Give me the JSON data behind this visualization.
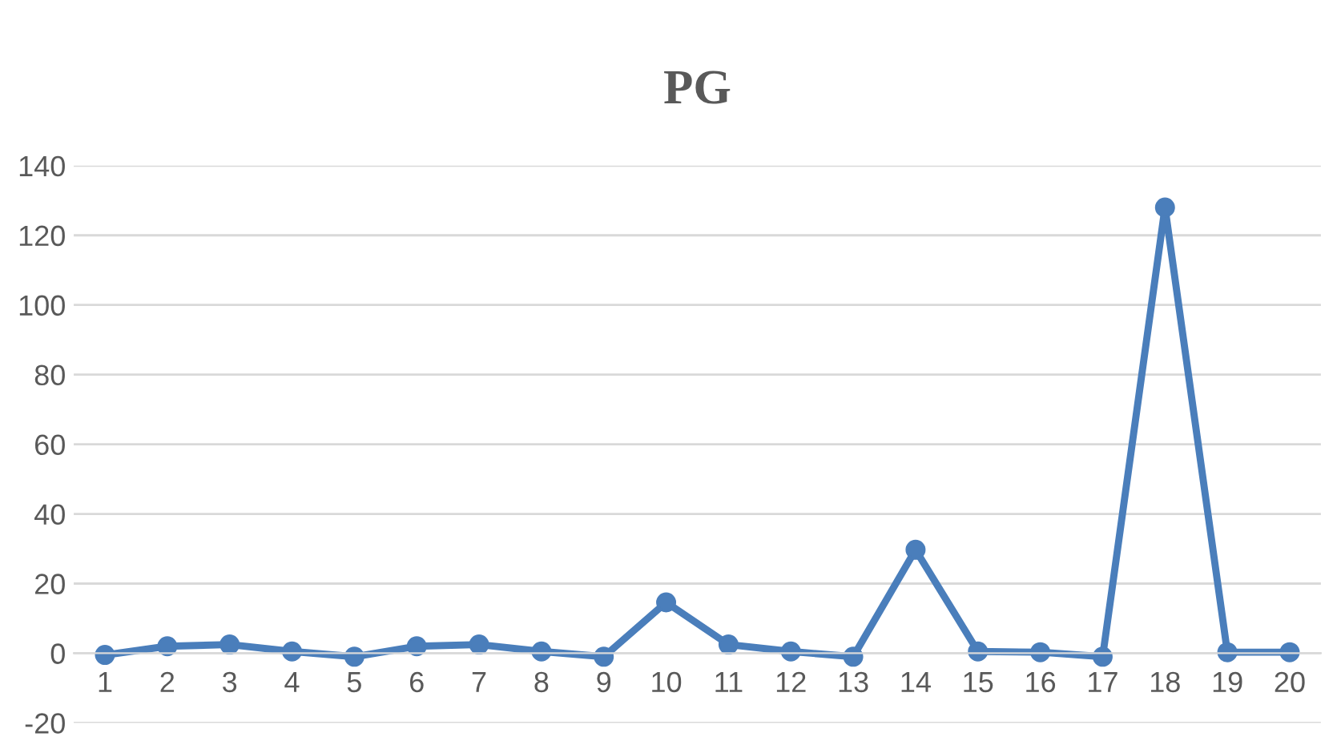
{
  "chart_data": {
    "type": "line",
    "title": "PG",
    "categories": [
      "1",
      "2",
      "3",
      "4",
      "5",
      "6",
      "7",
      "8",
      "9",
      "10",
      "11",
      "12",
      "13",
      "14",
      "15",
      "16",
      "17",
      "18",
      "19",
      "20"
    ],
    "series": [
      {
        "color": "#4a7ebb",
        "values": [
          -0.5,
          2,
          2.5,
          0.5,
          -1,
          2,
          2.5,
          0.5,
          -1,
          14.6,
          2.5,
          0.5,
          -1,
          29.7,
          0.5,
          0.3,
          -1,
          128,
          0.3,
          0.3
        ]
      }
    ],
    "ylim": [
      -20,
      140
    ],
    "yticks": [
      -20,
      0,
      20,
      40,
      60,
      80,
      100,
      120,
      140
    ],
    "grid": "y",
    "marker": "circle",
    "line_style": "solid"
  }
}
